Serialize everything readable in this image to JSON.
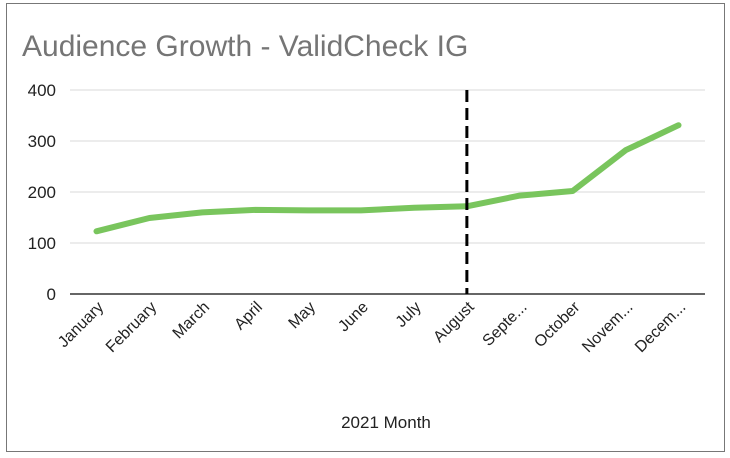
{
  "chart_data": {
    "type": "line",
    "title": "Audience Growth - ValidCheck IG",
    "xlabel": "2021 Month",
    "ylabel": "",
    "categories": [
      "January",
      "February",
      "March",
      "April",
      "May",
      "June",
      "July",
      "August",
      "Septe...",
      "October",
      "Novem...",
      "Decem..."
    ],
    "series": [
      {
        "values": [
          123,
          149,
          160,
          165,
          164,
          164,
          169,
          172,
          193,
          202,
          282,
          331
        ],
        "color": "#79c55d"
      }
    ],
    "yticks": [
      "0",
      "100",
      "200",
      "300",
      "400"
    ],
    "ylim": [
      0,
      400
    ],
    "grid": true,
    "legend": "none",
    "annotation": {
      "type": "vertical-dashed-line",
      "at_category": "August",
      "color": "#000000"
    }
  }
}
